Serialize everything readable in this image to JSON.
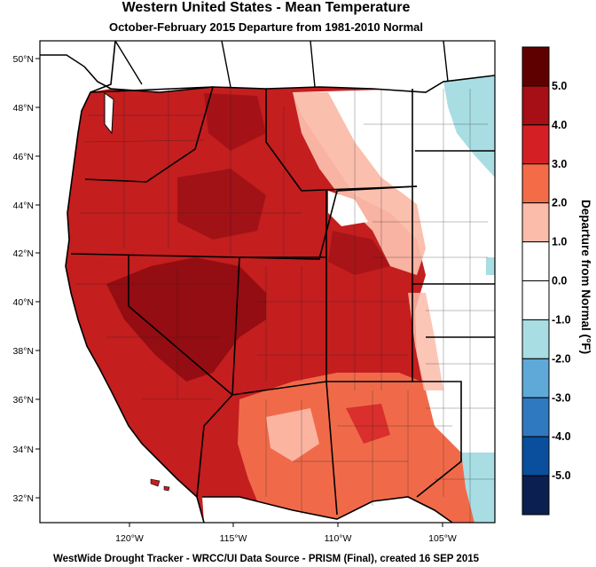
{
  "title": "Western United States - Mean Temperature",
  "subtitle": "October-February 2015  Departure from 1981-2010 Normal",
  "footer": "WestWide Drought Tracker - WRCC/UI  Data Source - PRISM (Final), created 16 SEP 2015",
  "map": {
    "lat_ticks": [
      "50°N",
      "48°N",
      "46°N",
      "44°N",
      "42°N",
      "40°N",
      "38°N",
      "36°N",
      "34°N",
      "32°N"
    ],
    "lon_ticks": [
      "120°W",
      "115°W",
      "110°W",
      "105°W"
    ]
  },
  "colorbar": {
    "title": "Departure from Normal (°F)",
    "labels": [
      "5.0",
      "4.0",
      "3.0",
      "2.0",
      "1.0",
      "0.0",
      "-1.0",
      "-2.0",
      "-3.0",
      "-4.0",
      "-5.0"
    ],
    "colors": [
      "#5f0000",
      "#a50f15",
      "#d42024",
      "#f46b48",
      "#fbbcaa",
      "#ffffff",
      "#ffffff",
      "#a8dde3",
      "#5ea9d8",
      "#2f79c0",
      "#0a4f9e",
      "#0b1f50"
    ]
  }
}
